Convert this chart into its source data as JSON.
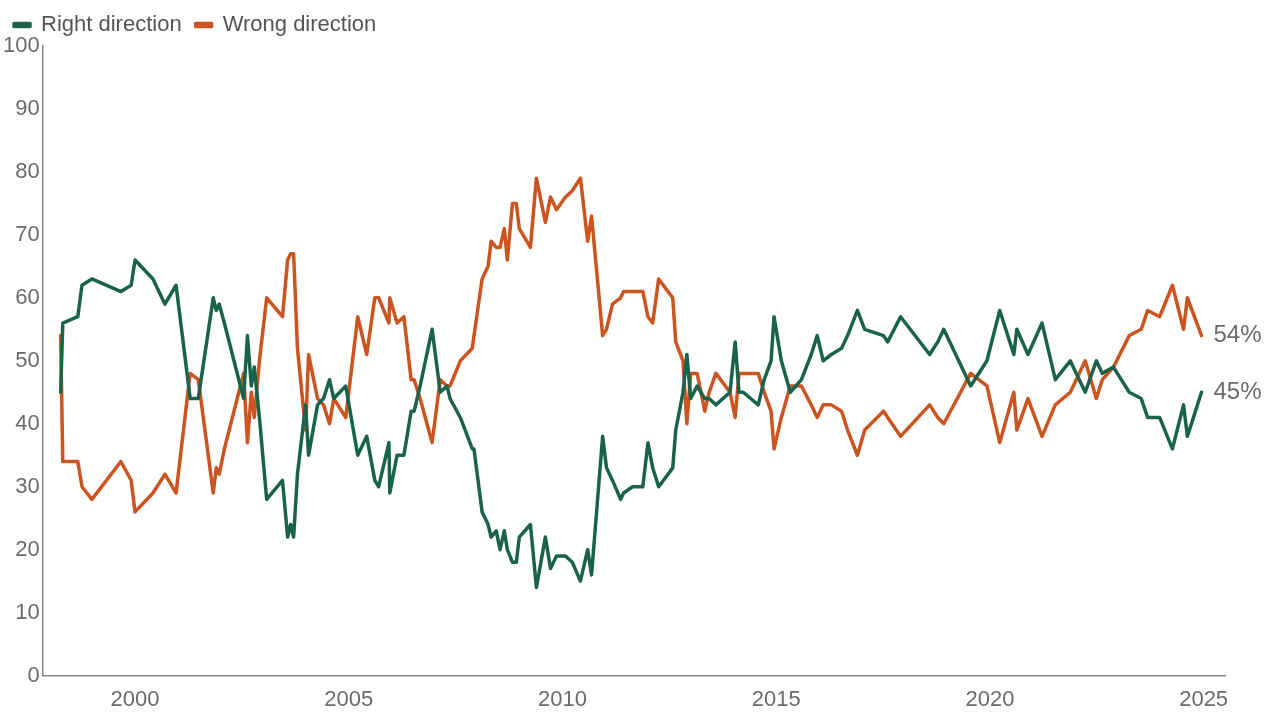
{
  "chart_data": {
    "type": "line",
    "legend": "top left",
    "grid": false,
    "marker": "none",
    "line_style": "solid",
    "x": [
      1998.26,
      1998.31,
      1998.66,
      1998.76,
      1998.99,
      1999.67,
      1999.91,
      2000.0,
      2000.42,
      2000.7,
      2000.96,
      2001.29,
      2001.48,
      2001.83,
      2001.9,
      2001.97,
      2002.09,
      2002.54,
      2002.63,
      2002.72,
      2002.79,
      2002.91,
      2003.08,
      2003.45,
      2003.57,
      2003.64,
      2003.71,
      2003.8,
      2003.99,
      2004.06,
      2004.27,
      2004.41,
      2004.55,
      2004.65,
      2004.93,
      2005.21,
      2005.42,
      2005.61,
      2005.7,
      2005.94,
      2005.96,
      2006.13,
      2006.29,
      2006.46,
      2006.53,
      2006.67,
      2006.95,
      2007.14,
      2007.3,
      2007.37,
      2007.61,
      2007.89,
      2007.93,
      2008.12,
      2008.26,
      2008.33,
      2008.45,
      2008.54,
      2008.64,
      2008.71,
      2008.83,
      2008.92,
      2008.99,
      2009.25,
      2009.39,
      2009.6,
      2009.72,
      2009.86,
      2010.07,
      2010.23,
      2010.42,
      2010.59,
      2010.68,
      2010.94,
      2011.03,
      2011.17,
      2011.36,
      2011.43,
      2011.64,
      2011.88,
      2012.0,
      2012.11,
      2012.25,
      2012.58,
      2012.65,
      2012.82,
      2012.91,
      2013.0,
      2013.15,
      2013.33,
      2013.43,
      2013.59,
      2013.92,
      2014.04,
      2014.13,
      2014.23,
      2014.58,
      2014.72,
      2014.88,
      2014.95,
      2015.12,
      2015.33,
      2015.59,
      2015.82,
      2015.96,
      2016.1,
      2016.29,
      2016.53,
      2016.67,
      2016.9,
      2017.07,
      2017.51,
      2017.61,
      2017.91,
      2018.59,
      2018.78,
      2018.92,
      2019.55,
      2019.93,
      2020.23,
      2020.56,
      2020.63,
      2020.89,
      2021.22,
      2021.53,
      2021.88,
      2022.23,
      2022.49,
      2022.63,
      2022.89,
      2023.26,
      2023.54,
      2023.69,
      2023.97,
      2024.27,
      2024.53,
      2024.62,
      2024.95
    ],
    "series": [
      {
        "name": "Right direction",
        "color": "#1a634a",
        "values": [
          45,
          56,
          57,
          62,
          63,
          61,
          62,
          66,
          63,
          59,
          62,
          44,
          44,
          60,
          58,
          59,
          56,
          44,
          54,
          46,
          49,
          41,
          28,
          31,
          22,
          24,
          22,
          32,
          43,
          35,
          43,
          44,
          47,
          44,
          46,
          35,
          38,
          31,
          30,
          37,
          29,
          35,
          35,
          42,
          42,
          46,
          55,
          45,
          46,
          44,
          41,
          36,
          36,
          26,
          24,
          22,
          23,
          20,
          23,
          20,
          18,
          18,
          22,
          24,
          14,
          22,
          17,
          19,
          19,
          18,
          15,
          20,
          16,
          38,
          33,
          31,
          28,
          29,
          30,
          30,
          37,
          33,
          30,
          33,
          39,
          45,
          51,
          44,
          46,
          44,
          44,
          43,
          45,
          53,
          45,
          45,
          43,
          47,
          50,
          57,
          50,
          45,
          47,
          51,
          54,
          50,
          51,
          52,
          54,
          58,
          55,
          54,
          53,
          57,
          51,
          53,
          55,
          46,
          50,
          58,
          51,
          55,
          51,
          56,
          47,
          50,
          45,
          50,
          48,
          49,
          45,
          44,
          41,
          41,
          36,
          43,
          38,
          45
        ]
      },
      {
        "name": "Wrong direction",
        "color": "#cc5420",
        "values": [
          54,
          34,
          34,
          30,
          28,
          34,
          31,
          26,
          29,
          32,
          29,
          48,
          47,
          29,
          33,
          32,
          36,
          48,
          37,
          45,
          41,
          50,
          60,
          57,
          66,
          67,
          67,
          52,
          39,
          51,
          44,
          43,
          40,
          44,
          41,
          57,
          51,
          60,
          60,
          56,
          60,
          56,
          57,
          47,
          47,
          44,
          37,
          47,
          46,
          46,
          50,
          52,
          54,
          63,
          65,
          69,
          68,
          68,
          71,
          66,
          75,
          75,
          71,
          68,
          79,
          72,
          76,
          74,
          76,
          77,
          79,
          69,
          73,
          54,
          55,
          59,
          60,
          61,
          61,
          61,
          57,
          56,
          63,
          60,
          53,
          50,
          40,
          48,
          48,
          42,
          45,
          48,
          45,
          41,
          48,
          48,
          48,
          45,
          42,
          36,
          41,
          46,
          46,
          43,
          41,
          43,
          43,
          42,
          39,
          35,
          39,
          42,
          41,
          38,
          43,
          41,
          40,
          48,
          46,
          37,
          45,
          39,
          44,
          38,
          43,
          45,
          50,
          44,
          47,
          49,
          54,
          55,
          58,
          57,
          62,
          55,
          60,
          54
        ]
      }
    ],
    "xlim": [
      1997.84,
      2025.5
    ],
    "xticks": [
      2000,
      2005,
      2010,
      2015,
      2020,
      2025
    ],
    "ylim": [
      0,
      100
    ],
    "yticks": [
      0,
      10,
      20,
      30,
      40,
      50,
      60,
      70,
      80,
      90,
      100
    ],
    "annotations": [
      {
        "text": "54%",
        "x": 2024.95,
        "y": 54
      },
      {
        "text": "45%",
        "x": 2024.95,
        "y": 45
      }
    ]
  }
}
